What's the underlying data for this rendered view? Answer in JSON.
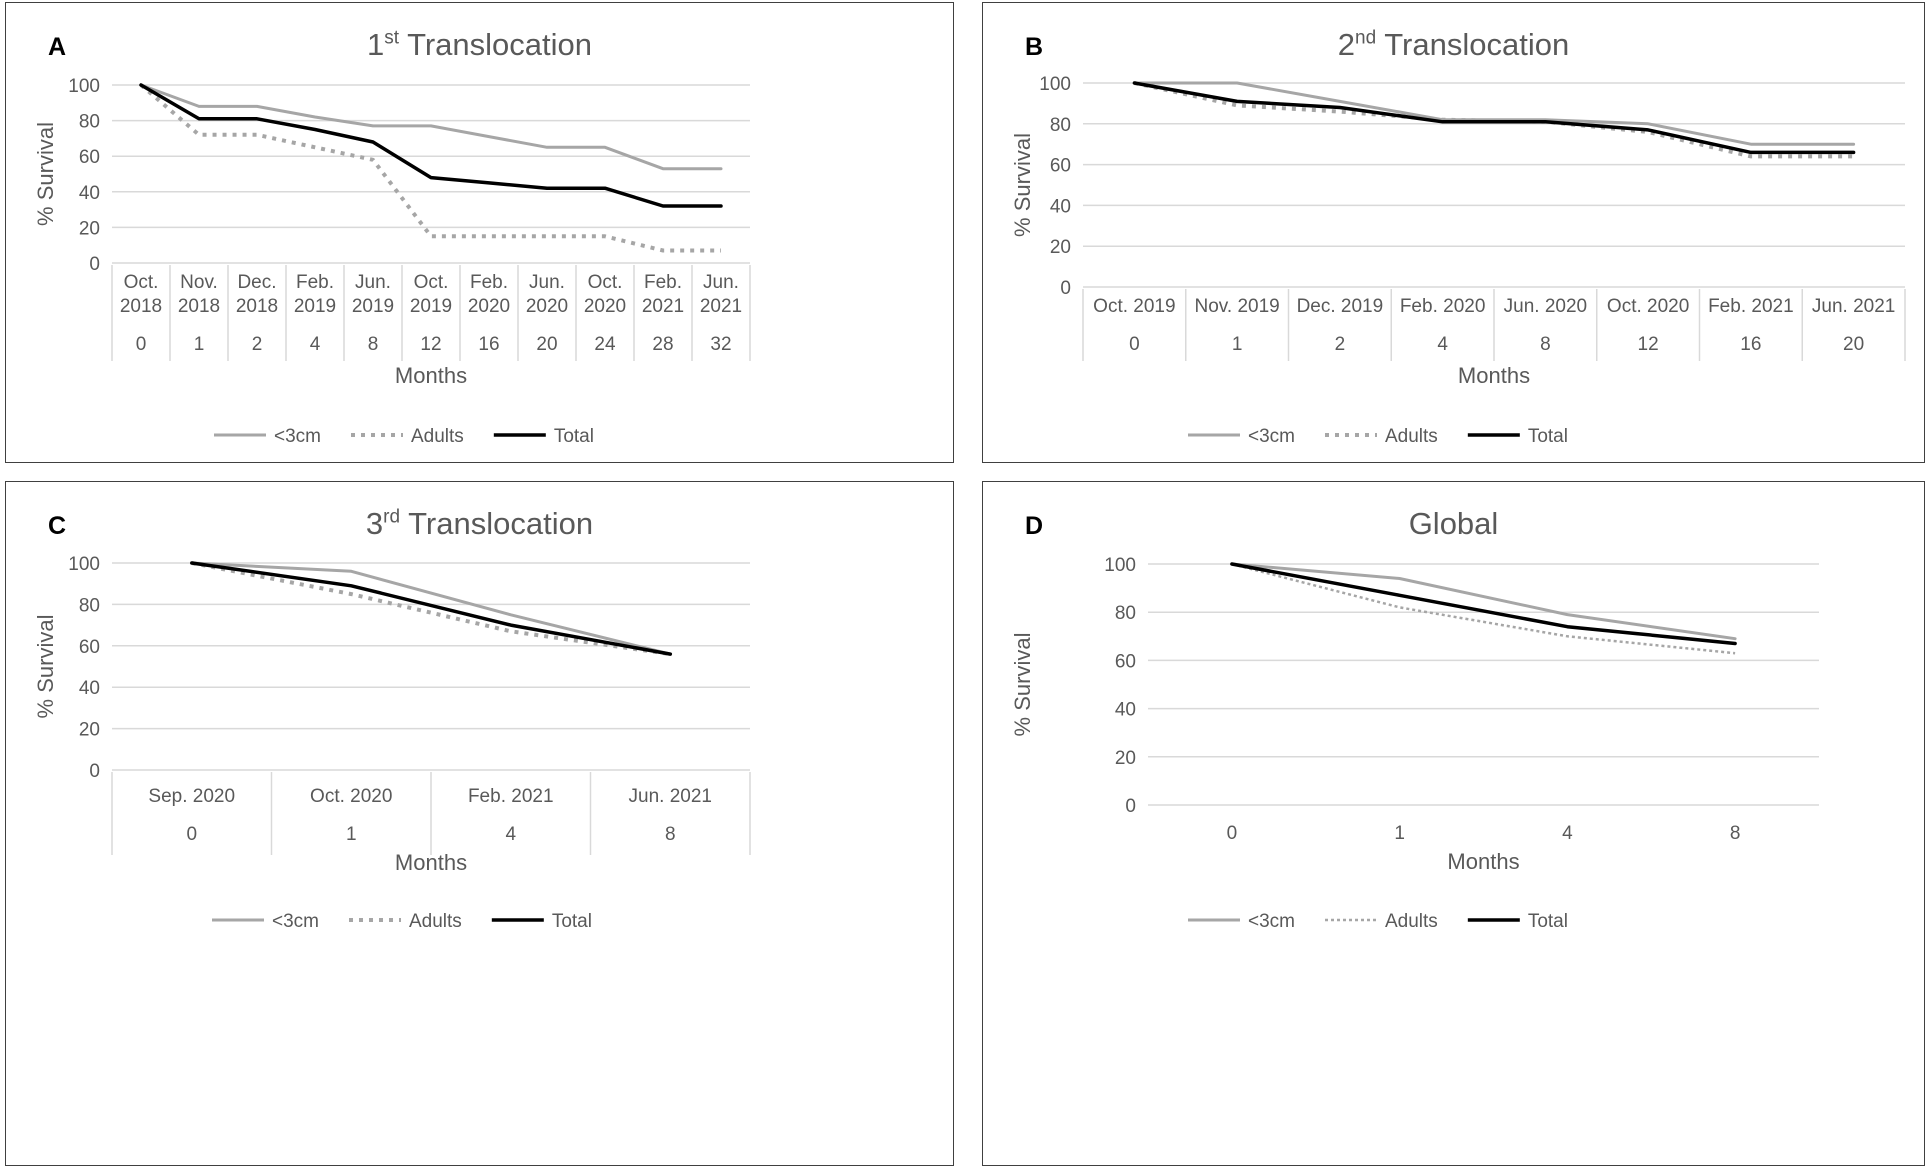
{
  "chart_data": [
    {
      "type": "line",
      "panel": "A",
      "title": "Translocation",
      "title_ordinal": "1",
      "title_suffix": "st",
      "ylabel": "% Survival",
      "xlabel": "Months",
      "ylim": [
        0,
        100
      ],
      "yticks": [
        "0",
        "20",
        "40",
        "60",
        "80",
        "100"
      ],
      "categories": [
        {
          "date": [
            "Oct.",
            "2018"
          ],
          "month": "0"
        },
        {
          "date": [
            "Nov.",
            "2018"
          ],
          "month": "1"
        },
        {
          "date": [
            "Dec.",
            "2018"
          ],
          "month": "2"
        },
        {
          "date": [
            "Feb.",
            "2019"
          ],
          "month": "4"
        },
        {
          "date": [
            "Jun.",
            "2019"
          ],
          "month": "8"
        },
        {
          "date": [
            "Oct.",
            "2019"
          ],
          "month": "12"
        },
        {
          "date": [
            "Feb.",
            "2020"
          ],
          "month": "16"
        },
        {
          "date": [
            "Jun.",
            "2020"
          ],
          "month": "20"
        },
        {
          "date": [
            "Oct.",
            "2020"
          ],
          "month": "24"
        },
        {
          "date": [
            "Feb.",
            "2021"
          ],
          "month": "28"
        },
        {
          "date": [
            "Jun.",
            "2021"
          ],
          "month": "32"
        }
      ],
      "series": [
        {
          "name": "<3cm",
          "style": "solid-gray",
          "values": [
            100,
            88,
            88,
            82,
            77,
            77,
            71,
            65,
            65,
            53,
            53
          ]
        },
        {
          "name": "Adults",
          "style": "dotted-gray",
          "values": [
            100,
            72,
            72,
            65,
            58,
            15,
            15,
            15,
            15,
            7,
            7
          ]
        },
        {
          "name": "Total",
          "style": "solid-black",
          "values": [
            100,
            81,
            81,
            75,
            68,
            48,
            45,
            42,
            42,
            32,
            32
          ]
        }
      ]
    },
    {
      "type": "line",
      "panel": "B",
      "title": "Translocation",
      "title_ordinal": "2",
      "title_suffix": "nd",
      "ylabel": "% Survival",
      "xlabel": "Months",
      "ylim": [
        0,
        100
      ],
      "yticks": [
        "0",
        "20",
        "40",
        "60",
        "80",
        "100"
      ],
      "categories": [
        {
          "date": [
            "Oct. 2019"
          ],
          "month": "0"
        },
        {
          "date": [
            "Nov. 2019"
          ],
          "month": "1"
        },
        {
          "date": [
            "Dec. 2019"
          ],
          "month": "2"
        },
        {
          "date": [
            "Feb. 2020"
          ],
          "month": "4"
        },
        {
          "date": [
            "Jun. 2020"
          ],
          "month": "8"
        },
        {
          "date": [
            "Oct. 2020"
          ],
          "month": "12"
        },
        {
          "date": [
            "Feb. 2021"
          ],
          "month": "16"
        },
        {
          "date": [
            "Jun. 2021"
          ],
          "month": "20"
        }
      ],
      "series": [
        {
          "name": "<3cm",
          "style": "solid-gray",
          "values": [
            100,
            100,
            91,
            82,
            82,
            80,
            70,
            70
          ]
        },
        {
          "name": "Adults",
          "style": "dotted-gray",
          "values": [
            100,
            89,
            86,
            82,
            81,
            76,
            64,
            64
          ]
        },
        {
          "name": "Total",
          "style": "solid-black",
          "values": [
            100,
            91,
            88,
            81,
            81,
            77,
            66,
            66
          ]
        }
      ]
    },
    {
      "type": "line",
      "panel": "C",
      "title": "Translocation",
      "title_ordinal": "3",
      "title_suffix": "rd",
      "ylabel": "% Survival",
      "xlabel": "Months",
      "ylim": [
        0,
        100
      ],
      "yticks": [
        "0",
        "20",
        "40",
        "60",
        "80",
        "100"
      ],
      "categories": [
        {
          "date": [
            "Sep. 2020"
          ],
          "month": "0"
        },
        {
          "date": [
            "Oct. 2020"
          ],
          "month": "1"
        },
        {
          "date": [
            "Feb. 2021"
          ],
          "month": "4"
        },
        {
          "date": [
            "Jun. 2021"
          ],
          "month": "8"
        }
      ],
      "series": [
        {
          "name": "<3cm",
          "style": "solid-gray",
          "values": [
            100,
            96,
            75,
            56
          ]
        },
        {
          "name": "Adults",
          "style": "dotted-gray",
          "values": [
            100,
            85,
            67,
            56
          ]
        },
        {
          "name": "Total",
          "style": "solid-black",
          "values": [
            100,
            89,
            70,
            56
          ]
        }
      ]
    },
    {
      "type": "line",
      "panel": "D",
      "title": "Global",
      "title_ordinal": "",
      "title_suffix": "",
      "ylabel": "% Survival",
      "xlabel": "Months",
      "ylim": [
        0,
        100
      ],
      "yticks": [
        "0",
        "20",
        "40",
        "60",
        "80",
        "100"
      ],
      "categories": [
        {
          "date": [],
          "month": "0"
        },
        {
          "date": [],
          "month": "1"
        },
        {
          "date": [],
          "month": "4"
        },
        {
          "date": [],
          "month": "8"
        }
      ],
      "series": [
        {
          "name": "<3cm",
          "style": "solid-gray",
          "values": [
            100,
            94,
            79,
            69
          ]
        },
        {
          "name": "Adults",
          "style": "dotted-gray-fine",
          "values": [
            100,
            82,
            70,
            63
          ]
        },
        {
          "name": "Total",
          "style": "solid-black",
          "values": [
            100,
            87,
            74,
            67
          ]
        }
      ]
    }
  ]
}
